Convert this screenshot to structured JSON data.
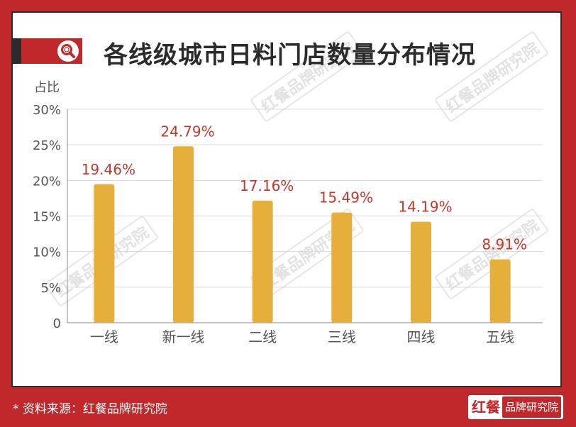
{
  "title": "各线级城市日料门店数量分布情况",
  "footer": {
    "source_note": "* 资料来源：红餐品牌研究院",
    "logo_mark": "红餐",
    "logo_text": "品牌研究院"
  },
  "watermark": "红餐品牌研究院",
  "colors": {
    "background": "#c0282b",
    "bar": "#e6ae3b",
    "label": "#c0392b",
    "axis_text": "#555555",
    "grid": "#d9d9d9"
  },
  "chart_data": {
    "type": "bar",
    "categories": [
      "一线",
      "新一线",
      "二线",
      "三线",
      "四线",
      "五线"
    ],
    "values": [
      19.46,
      24.79,
      17.16,
      15.49,
      14.19,
      8.91
    ],
    "value_labels": [
      "19.46%",
      "24.79%",
      "17.16%",
      "15.49%",
      "14.19%",
      "8.91%"
    ],
    "ylabel": "占比",
    "ylim": [
      0,
      30
    ],
    "yticks": [
      0,
      5,
      10,
      15,
      20,
      25,
      30
    ],
    "ytick_labels": [
      "0",
      "5%",
      "10%",
      "15%",
      "20%",
      "25%",
      "30%"
    ],
    "grid": true
  }
}
